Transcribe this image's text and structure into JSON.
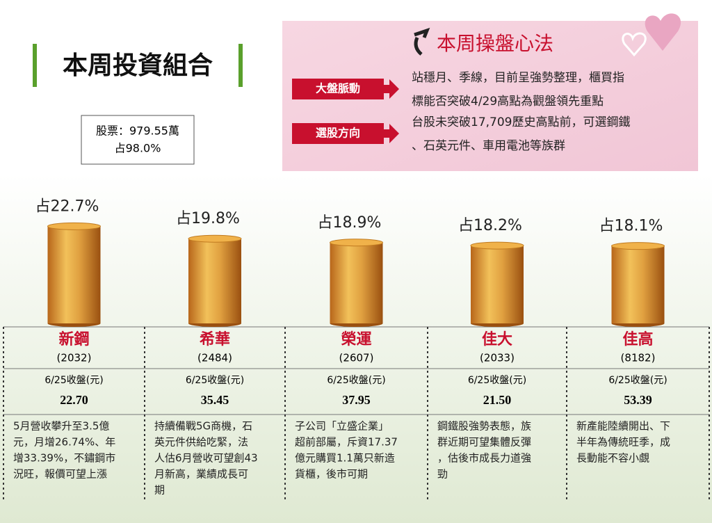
{
  "title": "本周投資組合",
  "holdings": {
    "line1": "股票：979.55萬",
    "line2": "占98.0%"
  },
  "strategy": {
    "title": "本周操盤心法",
    "items": [
      {
        "label": "大盤脈動",
        "lines": [
          "站穩月、季線，目前呈強勢整理，櫃買指",
          "標能否突破4/29高點為觀盤領先重點"
        ]
      },
      {
        "label": "選股方向",
        "lines": [
          "台股未突破17,709歷史高點前，可選鋼鐵",
          "、石英元件、車用電池等族群"
        ]
      }
    ]
  },
  "chart_data": {
    "type": "cylinder",
    "categories": [
      "新鋼",
      "希華",
      "榮運",
      "佳大",
      "佳高"
    ],
    "values": [
      22.7,
      19.8,
      18.9,
      18.2,
      18.1
    ],
    "value_labels": [
      "占22.7%",
      "占19.8%",
      "占18.9%",
      "占18.2%",
      "占18.1%"
    ],
    "color": "#d08a2a"
  },
  "close_label": "6/25收盤(元)",
  "stocks": [
    {
      "code": "(2032)",
      "close": "22.70",
      "note": [
        "5月營收攀升至3.5億",
        "元，月增26.74%、年",
        "增33.39%，不鏽鋼市",
        "況旺，報價可望上漲"
      ]
    },
    {
      "code": "(2484)",
      "close": "35.45",
      "note": [
        "持續備戰5G商機，石",
        "英元件供給吃緊，法",
        "人估6月營收可望創43",
        "月新高，業績成長可",
        "期"
      ]
    },
    {
      "code": "(2607)",
      "close": "37.95",
      "note": [
        "子公司「立盛企業」",
        "超前部屬，斥資17.37",
        "億元購買1.1萬只新造",
        "貨櫃，後市可期"
      ]
    },
    {
      "code": "(2033)",
      "close": "21.50",
      "note": [
        "鋼鐵股強勢表態，族",
        "群近期可望集體反彈",
        "，估後市成長力道強",
        "勁"
      ]
    },
    {
      "code": "(8182)",
      "close": "53.39",
      "note": [
        "新產能陸續開出、下",
        "半年為傳統旺季，成",
        "長動能不容小覷"
      ]
    }
  ]
}
